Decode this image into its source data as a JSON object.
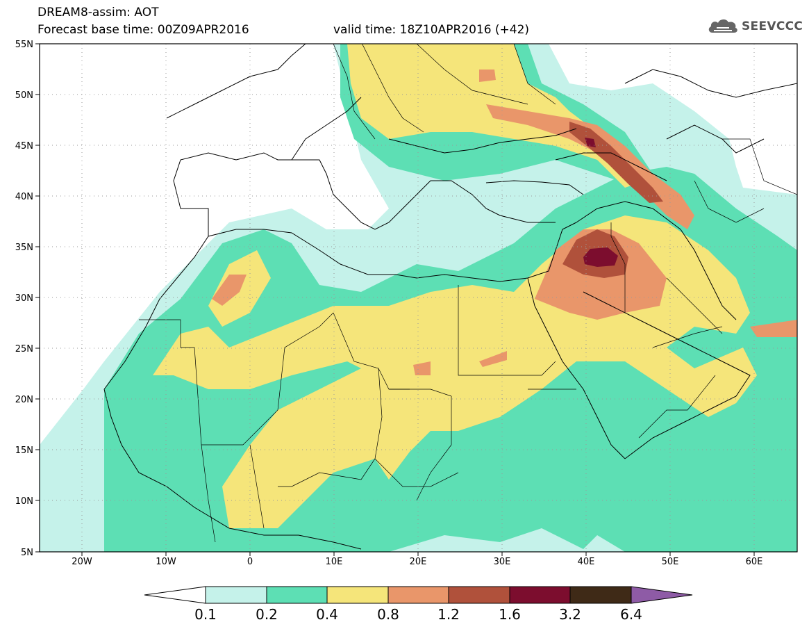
{
  "header": {
    "title_line1": "DREAM8-assim: AOT",
    "title_line2": "Forecast base time: 00Z09APR2016",
    "valid_time": "valid time: 18Z10APR2016 (+42)",
    "logo_text": "SEEVCCC",
    "logo_icon": "cloud-icon"
  },
  "map": {
    "lon_range": [
      -25,
      65
    ],
    "lat_range": [
      5,
      55
    ],
    "lon_ticks": [
      "20W",
      "10W",
      "0",
      "10E",
      "20E",
      "30E",
      "40E",
      "50E",
      "60E"
    ],
    "lat_ticks": [
      "5N",
      "10N",
      "15N",
      "20N",
      "25N",
      "30N",
      "35N",
      "40N",
      "45N",
      "50N",
      "55N"
    ],
    "grid": "dotted"
  },
  "colorbar": {
    "levels": [
      "0.1",
      "0.2",
      "0.4",
      "0.8",
      "1.2",
      "1.6",
      "3.2",
      "6.4"
    ],
    "colors": [
      "#ffffff",
      "#c5f2ea",
      "#5ddfb4",
      "#f5e57a",
      "#e9966a",
      "#b0513b",
      "#7c0d2e",
      "#3f2a17",
      "#8e5ba6"
    ]
  }
}
